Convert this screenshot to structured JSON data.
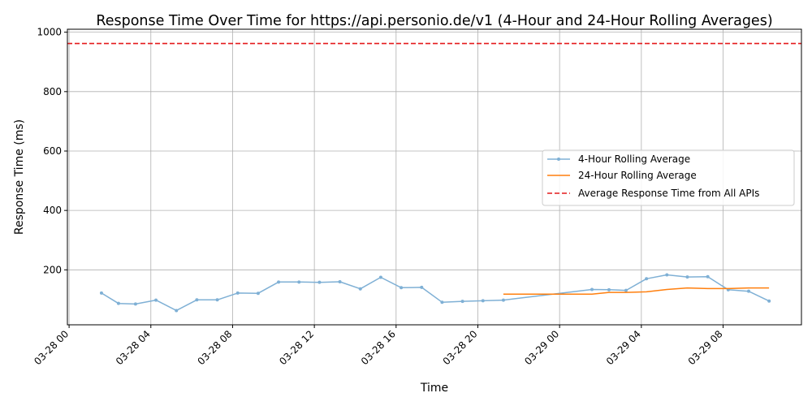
{
  "chart_data": {
    "type": "line",
    "title": "Response Time Over Time for https://api.personio.de/v1 (4-Hour and 24-Hour Rolling Averages)",
    "xlabel": "Time",
    "ylabel": "Response Time (ms)",
    "x_ticks": [
      "03-28 00",
      "03-28 04",
      "03-28 08",
      "03-28 12",
      "03-28 16",
      "03-28 20",
      "03-29 00",
      "03-29 04",
      "03-29 08"
    ],
    "x_tick_times": [
      "2024-03-28 00:00",
      "2024-03-28 04:00",
      "2024-03-28 08:00",
      "2024-03-28 12:00",
      "2024-03-28 16:00",
      "2024-03-28 20:00",
      "2024-03-29 00:00",
      "2024-03-29 04:00",
      "2024-03-29 08:00"
    ],
    "y_ticks": [
      200,
      400,
      600,
      800,
      1000
    ],
    "xlim": [
      "2024-03-27 23:55",
      "2024-03-29 11:50"
    ],
    "ylim": [
      15,
      1010
    ],
    "grid": true,
    "legend_position": "center-right",
    "series": [
      {
        "name": "4-Hour Rolling Average",
        "color": "#7fb0d5",
        "marker": "dot",
        "style": "solid",
        "points": [
          [
            "2024-03-28 01:35",
            122
          ],
          [
            "2024-03-28 02:25",
            87
          ],
          [
            "2024-03-28 03:15",
            85
          ],
          [
            "2024-03-28 04:15",
            98
          ],
          [
            "2024-03-28 05:15",
            63
          ],
          [
            "2024-03-28 06:15",
            99
          ],
          [
            "2024-03-28 07:15",
            99
          ],
          [
            "2024-03-28 08:15",
            122
          ],
          [
            "2024-03-28 09:15",
            121
          ],
          [
            "2024-03-28 10:15",
            159
          ],
          [
            "2024-03-28 11:15",
            159
          ],
          [
            "2024-03-28 12:15",
            158
          ],
          [
            "2024-03-28 13:15",
            160
          ],
          [
            "2024-03-28 14:15",
            136
          ],
          [
            "2024-03-28 15:15",
            175
          ],
          [
            "2024-03-28 16:15",
            140
          ],
          [
            "2024-03-28 17:15",
            141
          ],
          [
            "2024-03-28 18:15",
            91
          ],
          [
            "2024-03-28 19:15",
            94
          ],
          [
            "2024-03-28 20:15",
            96
          ],
          [
            "2024-03-28 21:15",
            98
          ],
          [
            "2024-03-29 01:35",
            134
          ],
          [
            "2024-03-29 02:25",
            133
          ],
          [
            "2024-03-29 03:15",
            131
          ],
          [
            "2024-03-29 04:15",
            170
          ],
          [
            "2024-03-29 05:15",
            183
          ],
          [
            "2024-03-29 06:15",
            176
          ],
          [
            "2024-03-29 07:15",
            177
          ],
          [
            "2024-03-29 08:15",
            133
          ],
          [
            "2024-03-29 09:15",
            128
          ],
          [
            "2024-03-29 10:15",
            95
          ]
        ]
      },
      {
        "name": "24-Hour Rolling Average",
        "color": "#ff7f0e",
        "marker": "none",
        "style": "solid",
        "points": [
          [
            "2024-03-28 21:15",
            118
          ],
          [
            "2024-03-29 00:00",
            118
          ],
          [
            "2024-03-29 01:35",
            118
          ],
          [
            "2024-03-29 02:25",
            124
          ],
          [
            "2024-03-29 03:15",
            124
          ],
          [
            "2024-03-29 04:15",
            126
          ],
          [
            "2024-03-29 05:15",
            134
          ],
          [
            "2024-03-29 06:15",
            139
          ],
          [
            "2024-03-29 07:15",
            137
          ],
          [
            "2024-03-29 08:15",
            137
          ],
          [
            "2024-03-29 09:15",
            139
          ],
          [
            "2024-03-29 10:15",
            139
          ]
        ]
      }
    ],
    "reference_line": {
      "name": "Average Response Time from All APIs",
      "value": 962,
      "color": "#e41a1c",
      "style": "dashed"
    }
  }
}
